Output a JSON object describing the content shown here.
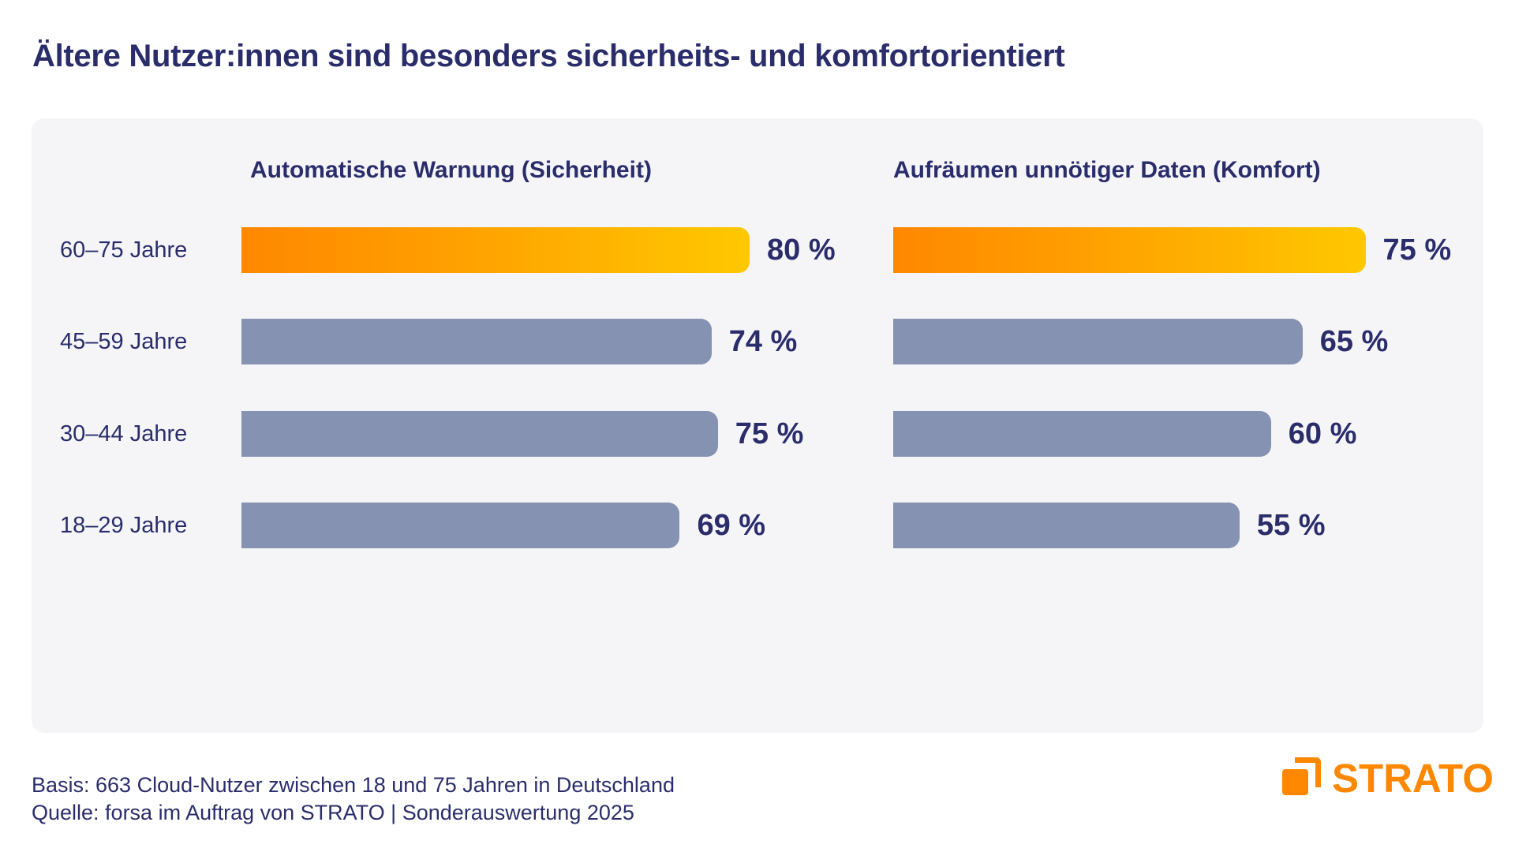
{
  "title": "Ältere Nutzer:innen sind besonders sicherheits- und komfortorientiert",
  "colors": {
    "text": "#2b2d6b",
    "bar_default": "#8592b2",
    "bar_highlight_start": "#ff8800",
    "bar_highlight_end": "#ffc800",
    "panel": "#f5f5f8",
    "brand": "#ff8800"
  },
  "chart_data": [
    {
      "type": "bar",
      "orientation": "horizontal",
      "title": "Automatische Warnung (Sicherheit)",
      "categories": [
        "60–75 Jahre",
        "45–59 Jahre",
        "30–44 Jahre",
        "18–29 Jahre"
      ],
      "values": [
        80,
        74,
        75,
        69
      ],
      "value_labels": [
        "80 %",
        "74 %",
        "75 %",
        "69 %"
      ],
      "highlighted_category": "60–75 Jahre",
      "unit": "%",
      "xlim": [
        0,
        100
      ],
      "grid": false
    },
    {
      "type": "bar",
      "orientation": "horizontal",
      "title": "Aufräumen unnötiger Daten (Komfort)",
      "categories": [
        "60–75 Jahre",
        "45–59 Jahre",
        "30–44 Jahre",
        "18–29 Jahre"
      ],
      "values": [
        75,
        65,
        60,
        55
      ],
      "value_labels": [
        "75 %",
        "65 %",
        "60 %",
        "55 %"
      ],
      "highlighted_category": "60–75 Jahre",
      "unit": "%",
      "xlim": [
        0,
        100
      ],
      "grid": false
    }
  ],
  "footer": {
    "basis": "Basis: 663 Cloud-Nutzer zwischen 18 und 75 Jahren in Deutschland",
    "source": "Quelle: forsa im Auftrag von STRATO | Sonderauswertung 2025"
  },
  "logo": {
    "text": "STRATO",
    "icon": "strato-logo-icon"
  }
}
